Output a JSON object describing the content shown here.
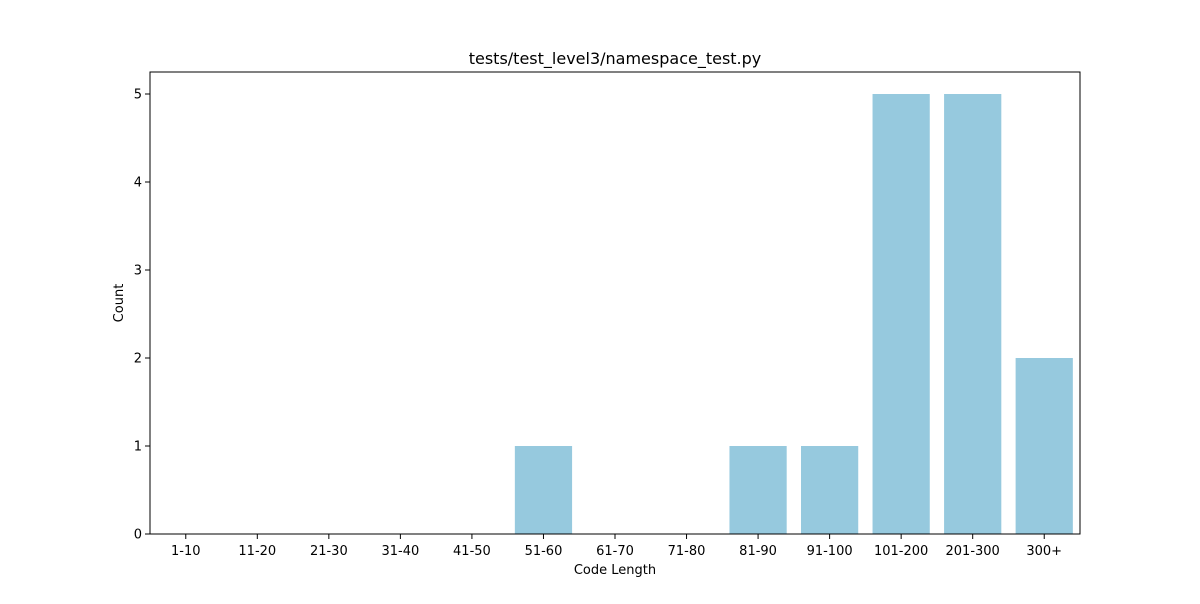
{
  "chart_data": {
    "type": "bar",
    "title": "tests/test_level3/namespace_test.py",
    "xlabel": "Code Length",
    "ylabel": "Count",
    "categories": [
      "1-10",
      "11-20",
      "21-30",
      "31-40",
      "41-50",
      "51-60",
      "61-70",
      "71-80",
      "81-90",
      "91-100",
      "101-200",
      "201-300",
      "300+"
    ],
    "values": [
      0,
      0,
      0,
      0,
      0,
      1,
      0,
      0,
      1,
      1,
      5,
      5,
      2
    ],
    "ylim": [
      0,
      5.25
    ],
    "yticks": [
      0,
      1,
      2,
      3,
      4,
      5
    ],
    "grid": false,
    "bar_color": "#96c9de"
  }
}
